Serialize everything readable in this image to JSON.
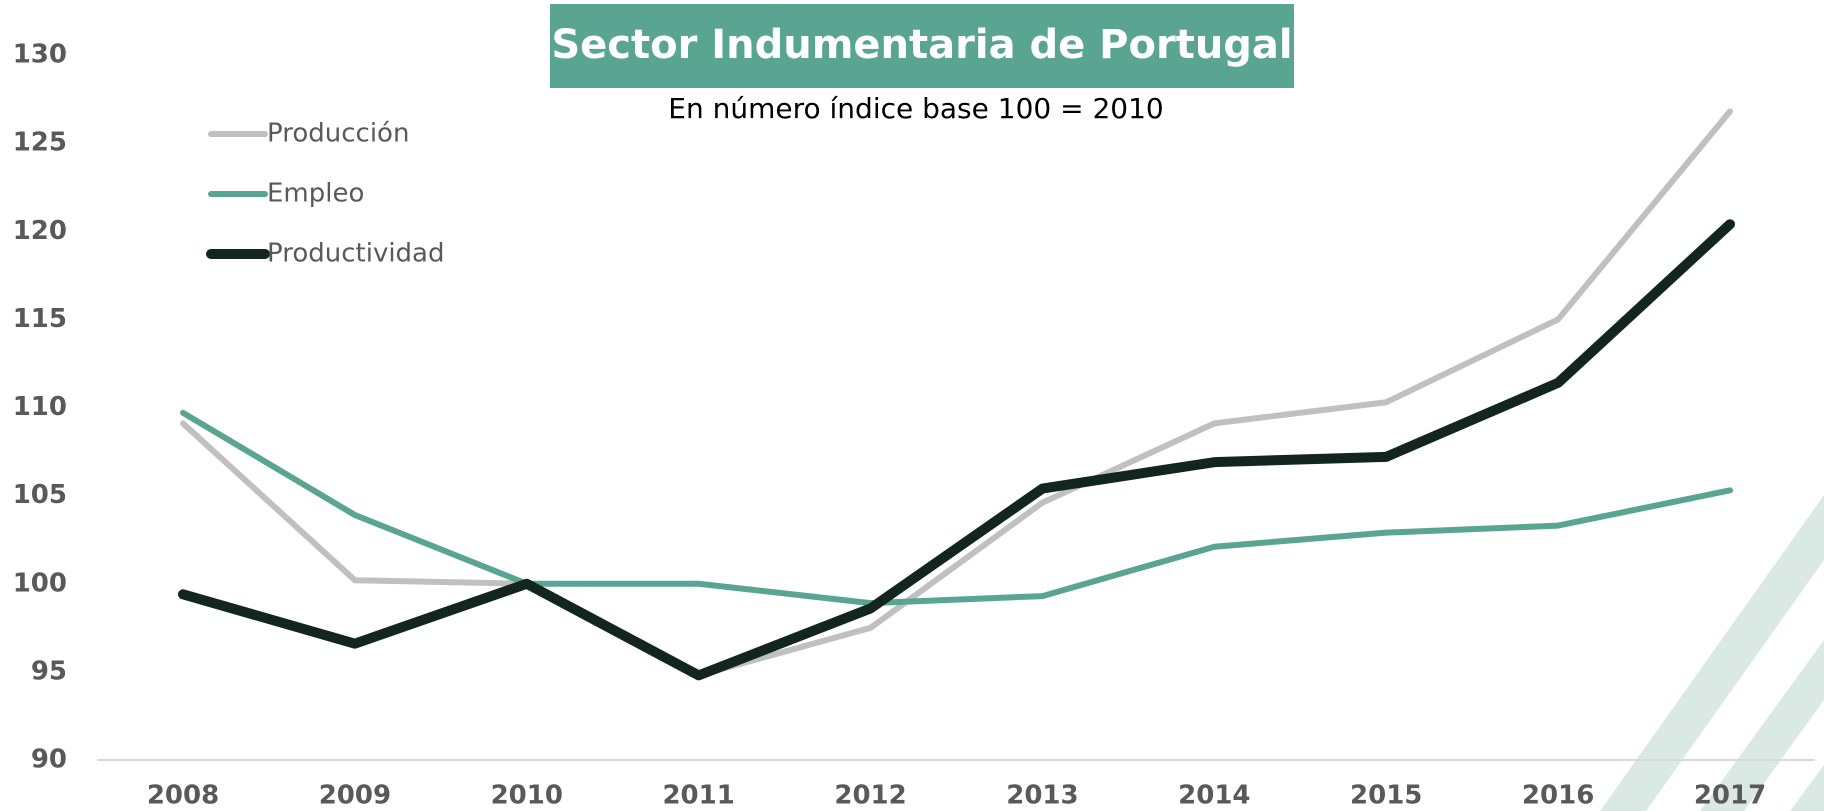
{
  "chart_data": {
    "type": "line",
    "title": "Sector Indumentaria de Portugal",
    "subtitle": "En número índice base 100 = 2010",
    "categories": [
      "2008",
      "2009",
      "2010",
      "2011",
      "2012",
      "2013",
      "2014",
      "2015",
      "2016",
      "2017"
    ],
    "series": [
      {
        "name": "Producción",
        "color": "#c0c0c0",
        "values": [
          109.1,
          100.2,
          100,
          94.8,
          97.5,
          104.6,
          109.1,
          110.3,
          115.0,
          126.8
        ]
      },
      {
        "name": "Empleo",
        "color": "#5aa591",
        "values": [
          109.7,
          103.9,
          100,
          100,
          98.9,
          99.3,
          102.1,
          102.9,
          103.3,
          105.3
        ]
      },
      {
        "name": "Productividad",
        "color": "#13251f",
        "values": [
          99.4,
          96.6,
          100,
          94.8,
          98.6,
          105.4,
          106.9,
          107.2,
          111.4,
          120.4
        ]
      }
    ],
    "ylim": [
      90,
      130
    ],
    "yticks": [
      90,
      95,
      100,
      105,
      110,
      115,
      120,
      125,
      130
    ],
    "grid": false,
    "legend": "upper left"
  }
}
